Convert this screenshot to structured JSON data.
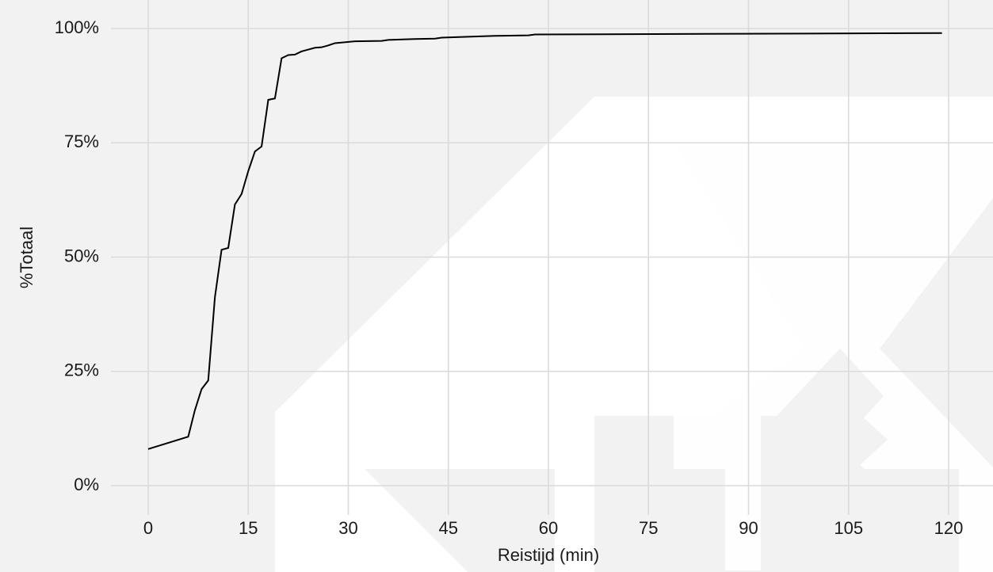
{
  "chart_data": {
    "type": "line",
    "x_label": "Reistijd (min)",
    "y_label": "%Totaal",
    "x": [
      0,
      6,
      7,
      8,
      9,
      10,
      11,
      12,
      13,
      14,
      15,
      16,
      17,
      18,
      19,
      20,
      21,
      22,
      23,
      25,
      26,
      27,
      28,
      31,
      35,
      36,
      40,
      43,
      44,
      52,
      57,
      58,
      119
    ],
    "series": [
      {
        "color": "#000000",
        "values": [
          8.0,
          10.7,
          16.5,
          21.1,
          23.0,
          41.2,
          51.6,
          52.0,
          61.5,
          63.8,
          68.8,
          73.1,
          74.2,
          84.4,
          84.7,
          93.5,
          94.2,
          94.3,
          95.0,
          95.8,
          95.9,
          96.3,
          96.8,
          97.2,
          97.3,
          97.5,
          97.7,
          97.8,
          98.0,
          98.4,
          98.5,
          98.7,
          99.0
        ]
      }
    ],
    "xlim": [
      0,
      120
    ],
    "xticks": [
      0,
      15,
      30,
      45,
      60,
      75,
      90,
      105,
      120
    ],
    "ylim": [
      0,
      100
    ],
    "yticks": [
      {
        "value": 0,
        "label": "0%"
      },
      {
        "value": 25,
        "label": "25%"
      },
      {
        "value": 50,
        "label": "50%"
      },
      {
        "value": 75,
        "label": "75%"
      },
      {
        "value": 100,
        "label": "100%"
      }
    ],
    "grid": true
  }
}
